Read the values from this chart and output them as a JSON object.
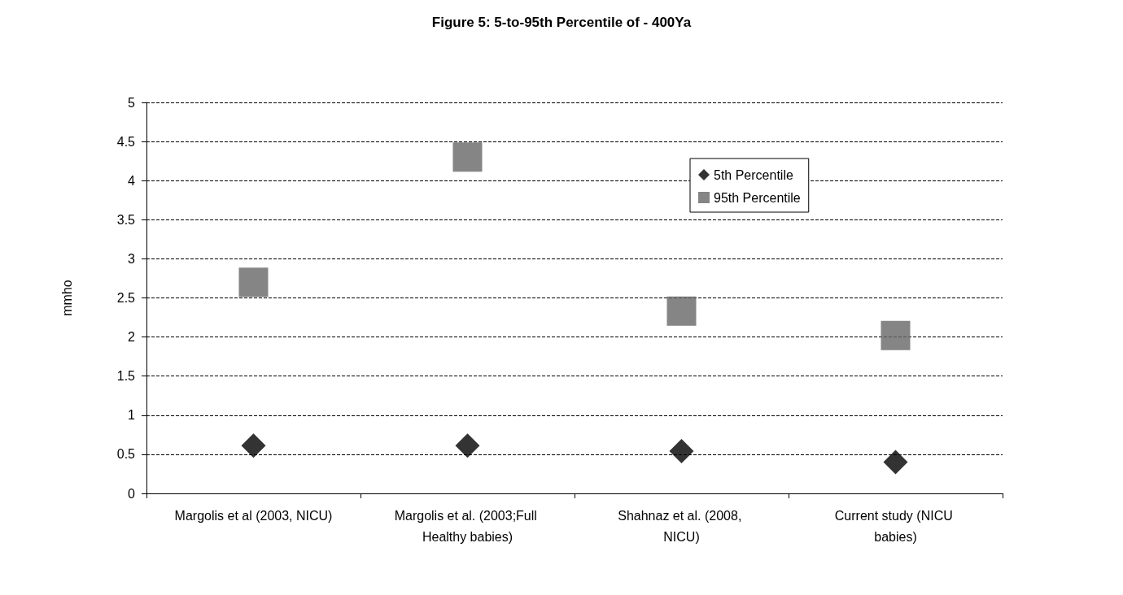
{
  "chart_data": {
    "type": "scatter",
    "title": "Figure 5: 5-to-95th Percentile of - 400Ya",
    "ylabel": "mmho",
    "categories": [
      "Margolis et al (2003, NICU)",
      "Margolis et al. (2003;Full Healthy babies)",
      "Shahnaz et al. (2008, NICU)",
      "Current study (NICU babies)"
    ],
    "series": [
      {
        "name": "5th Percentile",
        "color": "#000000",
        "marker": "diamond",
        "values": [
          0.61,
          0.61,
          0.54,
          0.4
        ]
      },
      {
        "name": "95th Percentile",
        "color": "#666666",
        "marker": "square",
        "values": [
          2.7,
          4.3,
          2.33,
          2.02
        ]
      }
    ],
    "ylim": [
      0,
      5
    ],
    "yticks": [
      0,
      0.5,
      1,
      1.5,
      2,
      2.5,
      3,
      3.5,
      4,
      4.5,
      5
    ],
    "grid": "y",
    "legend": "top right"
  }
}
